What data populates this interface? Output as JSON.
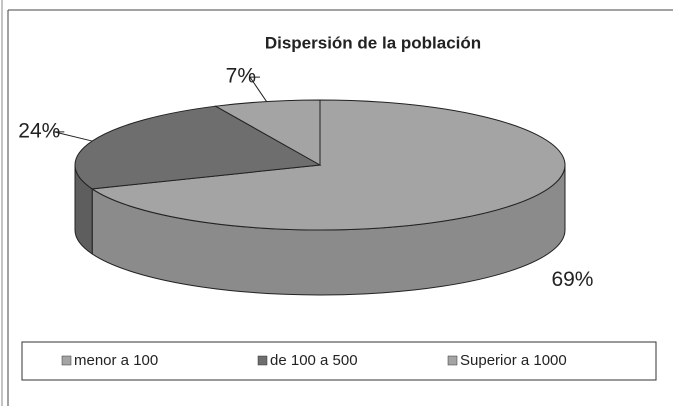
{
  "chart_data": {
    "type": "pie",
    "title": "Dispersión de la población",
    "categories": [
      "menor a 100",
      "de 100 a 500",
      "Superior a 1000"
    ],
    "values": [
      69,
      24,
      7
    ],
    "value_labels": [
      "69%",
      "24%",
      "7%"
    ],
    "colors": [
      "#a4a4a4",
      "#6e6e6e",
      "#a4a4a4"
    ],
    "legend": "bottom"
  }
}
